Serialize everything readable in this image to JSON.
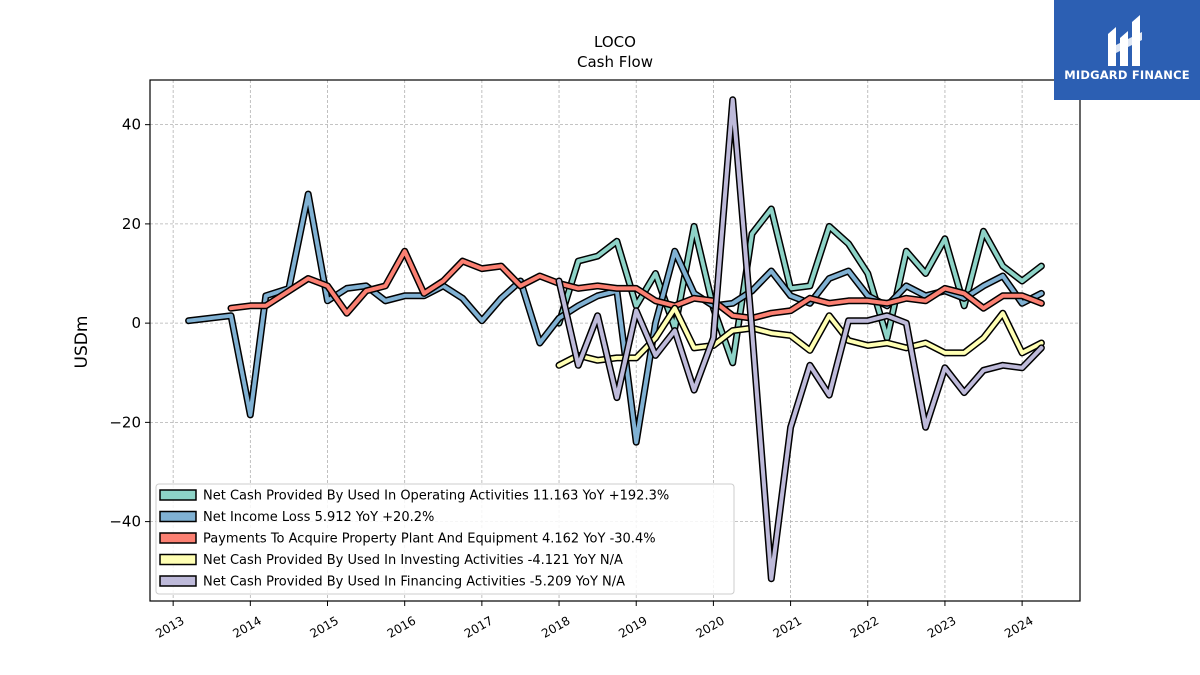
{
  "chart_data": {
    "type": "line",
    "title": "LOCO",
    "subtitle": "Cash Flow",
    "ylabel": "USDm",
    "xlabel": "",
    "xlim": [
      2012.7,
      2024.75
    ],
    "ylim": [
      -56,
      49
    ],
    "yticks": [
      -40,
      -20,
      0,
      20,
      40
    ],
    "ytick_labels": [
      "−40",
      "−20",
      "0",
      "20",
      "40"
    ],
    "xticks": [
      2013,
      2014,
      2015,
      2016,
      2017,
      2018,
      2019,
      2020,
      2021,
      2022,
      2023,
      2024
    ],
    "xtick_labels": [
      "2013",
      "2014",
      "2015",
      "2016",
      "2017",
      "2018",
      "2019",
      "2020",
      "2021",
      "2022",
      "2023",
      "2024"
    ],
    "grid": true,
    "legend_position": "lower-left",
    "series": [
      {
        "name": "Net Cash Provided By Used In Operating Activities",
        "legend_label": "Net Cash Provided By Used In Operating Activities  11.163 YoY +192.3%",
        "color": "#8dd3c7",
        "x": [
          2018.0,
          2018.25,
          2018.5,
          2018.75,
          2019.0,
          2019.25,
          2019.5,
          2019.75,
          2020.0,
          2020.25,
          2020.5,
          2020.75,
          2021.0,
          2021.25,
          2021.5,
          2021.75,
          2022.0,
          2022.25,
          2022.5,
          2022.75,
          2023.0,
          2023.25,
          2023.5,
          2023.75,
          2024.0,
          2024.25
        ],
        "y": [
          0,
          12.5,
          13.5,
          16.5,
          3.5,
          10,
          -1,
          19.5,
          3,
          -8,
          18,
          23,
          7,
          7.5,
          19.5,
          16,
          10,
          -3,
          14.5,
          10,
          17,
          3.5,
          18.5,
          11.5,
          8.5,
          11.5
        ]
      },
      {
        "name": "Net Income Loss",
        "legend_label": "Net Income Loss  5.912 YoY +20.2%",
        "color": "#80b1d3",
        "x": [
          2013.2,
          2013.75,
          2014.0,
          2014.2,
          2014.5,
          2014.75,
          2015.0,
          2015.25,
          2015.5,
          2015.75,
          2016.0,
          2016.25,
          2016.5,
          2016.75,
          2017.0,
          2017.25,
          2017.5,
          2017.75,
          2018.0,
          2018.25,
          2018.5,
          2018.75,
          2019.0,
          2019.25,
          2019.5,
          2019.75,
          2020.0,
          2020.25,
          2020.5,
          2020.75,
          2021.0,
          2021.25,
          2021.5,
          2021.75,
          2022.0,
          2022.25,
          2022.5,
          2022.75,
          2023.0,
          2023.25,
          2023.5,
          2023.75,
          2024.0,
          2024.25
        ],
        "y": [
          0.5,
          1.5,
          -18.5,
          5.5,
          7,
          26,
          4.5,
          7,
          7.5,
          4.5,
          5.5,
          5.5,
          7.5,
          5,
          0.5,
          5,
          8.5,
          -4,
          1,
          3.5,
          5.5,
          6.5,
          -24,
          0,
          14.5,
          6,
          3.5,
          4,
          6.5,
          10.5,
          5.5,
          4,
          9,
          10.5,
          5.5,
          3.5,
          7.5,
          5.5,
          6.5,
          5,
          7.5,
          9.5,
          4,
          6
        ]
      },
      {
        "name": "Payments To Acquire Property Plant And Equipment",
        "legend_label": "Payments To Acquire Property Plant And Equipment  4.162 YoY -30.4%",
        "color": "#fb8072",
        "x": [
          2013.75,
          2014.0,
          2014.2,
          2014.5,
          2014.75,
          2015.0,
          2015.25,
          2015.5,
          2015.75,
          2016.0,
          2016.25,
          2016.5,
          2016.75,
          2017.0,
          2017.25,
          2017.5,
          2017.75,
          2018.0,
          2018.25,
          2018.5,
          2018.75,
          2019.0,
          2019.25,
          2019.5,
          2019.75,
          2020.0,
          2020.25,
          2020.5,
          2020.75,
          2021.0,
          2021.25,
          2021.5,
          2021.75,
          2022.0,
          2022.25,
          2022.5,
          2022.75,
          2023.0,
          2023.25,
          2023.5,
          2023.75,
          2024.0,
          2024.25
        ],
        "y": [
          3,
          3.5,
          3.5,
          6.5,
          9,
          7.5,
          2,
          6.5,
          7.5,
          14.5,
          6,
          8.5,
          12.5,
          11,
          11.5,
          7.5,
          9.5,
          8,
          7,
          7.5,
          7,
          7,
          4.5,
          3.5,
          5,
          4.5,
          1.5,
          1,
          2,
          2.5,
          5,
          4,
          4.5,
          4.5,
          4,
          5,
          4.5,
          7,
          6,
          3,
          5.5,
          5.5,
          4
        ]
      },
      {
        "name": "Net Cash Provided By Used In Investing Activities",
        "legend_label": "Net Cash Provided By Used In Investing Activities  -4.121 YoY N/A",
        "color": "#ffffb3",
        "x": [
          2018.0,
          2018.25,
          2018.5,
          2018.75,
          2019.0,
          2019.25,
          2019.5,
          2019.75,
          2020.0,
          2020.25,
          2020.5,
          2020.75,
          2021.0,
          2021.25,
          2021.5,
          2021.75,
          2022.0,
          2022.25,
          2022.5,
          2022.75,
          2023.0,
          2023.25,
          2023.5,
          2023.75,
          2024.0,
          2024.25
        ],
        "y": [
          -8.5,
          -6.5,
          -7.5,
          -7,
          -7,
          -3,
          3,
          -5,
          -4.5,
          -1.5,
          -1,
          -2,
          -2.5,
          -5.5,
          1.5,
          -3.5,
          -4.5,
          -4,
          -5,
          -4,
          -6,
          -6,
          -3,
          2,
          -6,
          -4
        ]
      },
      {
        "name": "Net Cash Provided By Used In Financing Activities",
        "legend_label": "Net Cash Provided By Used In Financing Activities  -5.209 YoY N/A",
        "color": "#bebada",
        "x": [
          2018.0,
          2018.25,
          2018.5,
          2018.75,
          2019.0,
          2019.25,
          2019.5,
          2019.75,
          2020.0,
          2020.25,
          2020.5,
          2020.75,
          2021.0,
          2021.25,
          2021.5,
          2021.75,
          2022.0,
          2022.25,
          2022.5,
          2022.75,
          2023.0,
          2023.25,
          2023.5,
          2023.75,
          2024.0,
          2024.25
        ],
        "y": [
          8.5,
          -8.5,
          1.5,
          -15,
          2.5,
          -6.5,
          -1.5,
          -13.5,
          -3,
          45,
          -1.5,
          -51.5,
          -21,
          -8.5,
          -14.5,
          0.5,
          0.5,
          1.5,
          0,
          -21,
          -9,
          -14,
          -9.5,
          -8.5,
          -9,
          -5
        ]
      }
    ]
  },
  "logo": {
    "text": "MIDGARD FINANCE",
    "color": "#2c5fb3"
  }
}
